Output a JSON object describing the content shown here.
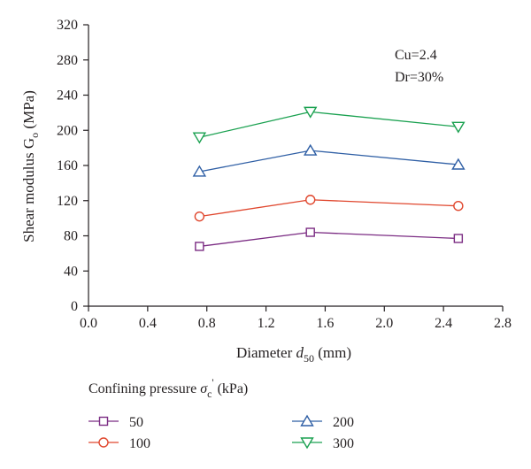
{
  "chart_data": {
    "type": "line",
    "x_axis": {
      "label_parts": {
        "main": "Diameter ",
        "var": "d",
        "sub": "50",
        "unit": " (mm)"
      },
      "range": [
        0.0,
        2.8
      ],
      "ticks": [
        "0.0",
        "0.4",
        "0.8",
        "1.2",
        "1.6",
        "2.0",
        "2.4",
        "2.8"
      ]
    },
    "y_axis": {
      "label_parts": {
        "main": "Shear modulus G",
        "sub": "o",
        "unit": " (MPa)"
      },
      "range": [
        0,
        320
      ],
      "ticks": [
        "0",
        "40",
        "80",
        "120",
        "160",
        "200",
        "240",
        "280",
        "320"
      ]
    },
    "annotations": [
      "Cu=2.4",
      "Dr=30%"
    ],
    "legend": {
      "title_parts": {
        "main": "Confining pressure ",
        "var": "σ",
        "sub": "c",
        "sup": "'",
        "unit": " (kPa)"
      },
      "placement": "bottom"
    },
    "x": [
      0.75,
      1.5,
      2.5
    ],
    "series": [
      {
        "name": "50",
        "marker": "square",
        "color": "#7b2c83",
        "values": [
          68,
          84,
          77
        ]
      },
      {
        "name": "100",
        "marker": "circle",
        "color": "#e0472e",
        "values": [
          102,
          121,
          114
        ]
      },
      {
        "name": "200",
        "marker": "triangle-up",
        "color": "#2f5fa5",
        "values": [
          153,
          177,
          161
        ]
      },
      {
        "name": "300",
        "marker": "triangle-down",
        "color": "#1aa150",
        "values": [
          192,
          221,
          204
        ]
      }
    ],
    "grid": false
  }
}
